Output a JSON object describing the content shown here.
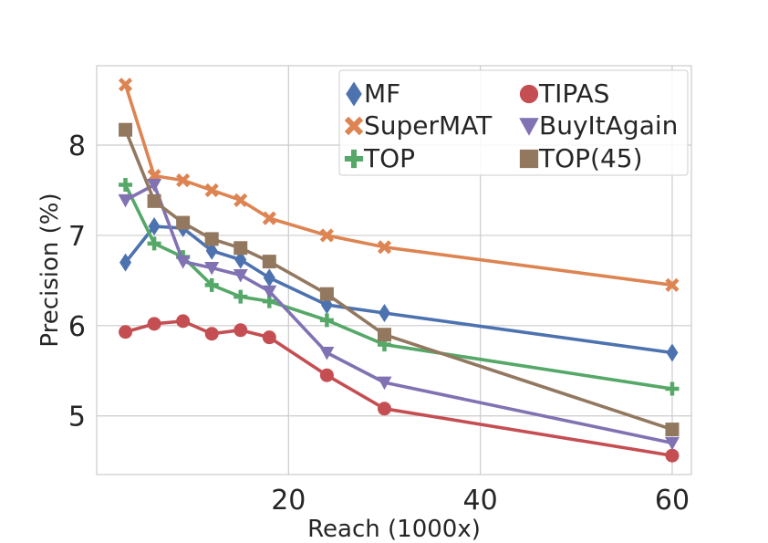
{
  "chart_data": {
    "type": "line",
    "title": "",
    "xlabel": "Reach (1000x)",
    "ylabel": "Precision (%)",
    "xlim": [
      0,
      62
    ],
    "ylim": [
      4.35,
      8.88
    ],
    "xticks": [
      20,
      40,
      60
    ],
    "yticks": [
      5,
      6,
      7,
      8
    ],
    "grid": true,
    "legend_position": "top-right",
    "x": [
      3,
      6,
      9,
      12,
      15,
      18,
      24,
      30,
      60
    ],
    "series": [
      {
        "name": "MF",
        "color": "#4c72b0",
        "marker": "diamond",
        "values": [
          6.7,
          7.1,
          7.08,
          6.83,
          6.73,
          6.53,
          6.23,
          6.14,
          5.7
        ]
      },
      {
        "name": "SuperMAT",
        "color": "#dd8452",
        "marker": "x",
        "values": [
          8.67,
          7.66,
          7.61,
          7.5,
          7.39,
          7.19,
          7.0,
          6.87,
          6.45
        ]
      },
      {
        "name": "TOP",
        "color": "#55a868",
        "marker": "plus",
        "values": [
          7.56,
          6.91,
          6.76,
          6.45,
          6.32,
          6.27,
          6.06,
          5.79,
          5.3
        ]
      },
      {
        "name": "TIPAS",
        "color": "#c44e52",
        "marker": "circle",
        "values": [
          5.93,
          6.02,
          6.05,
          5.91,
          5.95,
          5.87,
          5.45,
          5.08,
          4.56
        ]
      },
      {
        "name": "BuyItAgain",
        "color": "#8172b3",
        "marker": "triangle-down",
        "values": [
          7.39,
          7.56,
          6.71,
          6.64,
          6.56,
          6.38,
          5.7,
          5.37,
          4.7
        ]
      },
      {
        "name": "TOP(45)",
        "color": "#937860",
        "marker": "square",
        "values": [
          8.17,
          7.38,
          7.14,
          6.96,
          6.86,
          6.71,
          6.35,
          5.9,
          4.85
        ]
      }
    ]
  }
}
